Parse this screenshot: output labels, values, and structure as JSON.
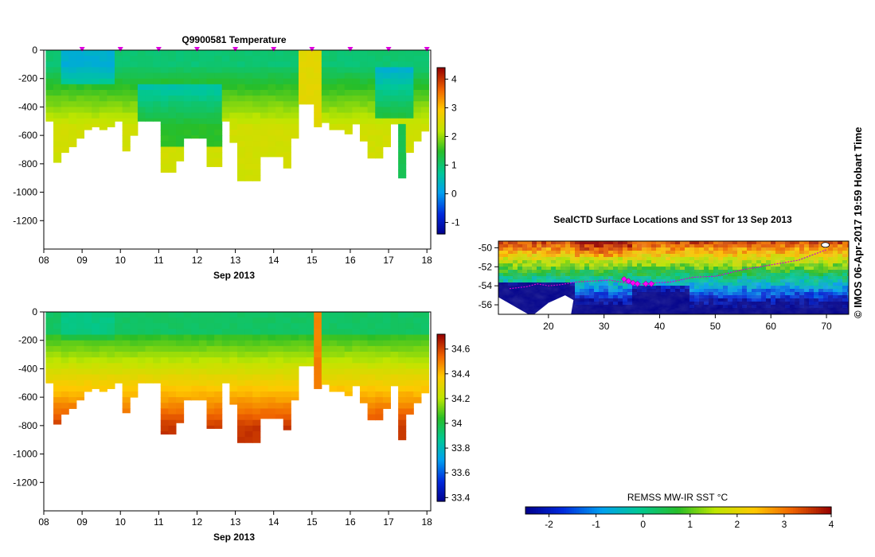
{
  "chart_data": [
    {
      "type": "heatmap",
      "title": "Q9900581  Temperature",
      "xlabel": "Sep 2013",
      "x_ticks": [
        "08",
        "09",
        "10",
        "11",
        "12",
        "13",
        "14",
        "15",
        "16",
        "17",
        "18"
      ],
      "x_range": [
        8,
        18.1
      ],
      "y_ticks": [
        0,
        -200,
        -400,
        -600,
        -800,
        -1000,
        -1200
      ],
      "ylim": [
        -1400,
        0
      ],
      "colorbar": {
        "range": [
          -1.4,
          4.4
        ],
        "ticks": [
          -1,
          0,
          1,
          2,
          3,
          4
        ]
      },
      "profile_markers_x": [
        9,
        10,
        11,
        12,
        13,
        14,
        15,
        16,
        17,
        18
      ],
      "profiles": [
        {
          "x": 8.15,
          "depth": 500
        },
        {
          "x": 8.35,
          "depth": 790
        },
        {
          "x": 8.55,
          "depth": 720
        },
        {
          "x": 8.75,
          "depth": 680
        },
        {
          "x": 8.95,
          "depth": 620
        },
        {
          "x": 9.15,
          "depth": 560
        },
        {
          "x": 9.35,
          "depth": 540
        },
        {
          "x": 9.55,
          "depth": 560
        },
        {
          "x": 9.75,
          "depth": 540
        },
        {
          "x": 9.95,
          "depth": 500
        },
        {
          "x": 10.15,
          "depth": 710
        },
        {
          "x": 10.35,
          "depth": 600
        },
        {
          "x": 10.55,
          "depth": 500
        },
        {
          "x": 10.75,
          "depth": 500
        },
        {
          "x": 10.95,
          "depth": 500
        },
        {
          "x": 11.15,
          "depth": 860
        },
        {
          "x": 11.35,
          "depth": 860
        },
        {
          "x": 11.55,
          "depth": 780
        },
        {
          "x": 11.75,
          "depth": 620
        },
        {
          "x": 11.95,
          "depth": 620
        },
        {
          "x": 12.15,
          "depth": 620
        },
        {
          "x": 12.35,
          "depth": 820
        },
        {
          "x": 12.55,
          "depth": 820
        },
        {
          "x": 12.75,
          "depth": 500
        },
        {
          "x": 12.95,
          "depth": 650
        },
        {
          "x": 13.15,
          "depth": 920
        },
        {
          "x": 13.35,
          "depth": 920
        },
        {
          "x": 13.55,
          "depth": 920
        },
        {
          "x": 13.75,
          "depth": 750
        },
        {
          "x": 13.95,
          "depth": 750
        },
        {
          "x": 14.15,
          "depth": 750
        },
        {
          "x": 14.35,
          "depth": 830
        },
        {
          "x": 14.55,
          "depth": 620
        },
        {
          "x": 14.75,
          "depth": 380
        },
        {
          "x": 14.95,
          "depth": 380
        },
        {
          "x": 15.15,
          "depth": 540
        },
        {
          "x": 15.35,
          "depth": 510
        },
        {
          "x": 15.55,
          "depth": 560
        },
        {
          "x": 15.75,
          "depth": 560
        },
        {
          "x": 15.95,
          "depth": 590
        },
        {
          "x": 16.15,
          "depth": 520
        },
        {
          "x": 16.35,
          "depth": 640
        },
        {
          "x": 16.55,
          "depth": 760
        },
        {
          "x": 16.75,
          "depth": 760
        },
        {
          "x": 16.95,
          "depth": 680
        },
        {
          "x": 17.15,
          "depth": 520
        },
        {
          "x": 17.35,
          "depth": 900
        },
        {
          "x": 17.55,
          "depth": 720
        },
        {
          "x": 17.75,
          "depth": 640
        },
        {
          "x": 17.95,
          "depth": 570
        }
      ]
    },
    {
      "type": "heatmap",
      "title": "",
      "xlabel": "Sep 2013",
      "x_ticks": [
        "08",
        "09",
        "10",
        "11",
        "12",
        "13",
        "14",
        "15",
        "16",
        "17",
        "18"
      ],
      "x_range": [
        8,
        18.1
      ],
      "y_ticks": [
        0,
        -200,
        -400,
        -600,
        -800,
        -1000,
        -1200
      ],
      "ylim": [
        -1400,
        0
      ],
      "colorbar": {
        "range": [
          33.37,
          34.72
        ],
        "ticks": [
          "33.4",
          "33.6",
          "33.8",
          "34",
          "34.2",
          "34.4",
          "34.6"
        ]
      }
    },
    {
      "type": "heatmap",
      "title": "SealCTD Surface Locations and SST for 13 Sep 2013",
      "x_ticks": [
        20,
        30,
        40,
        50,
        60,
        70
      ],
      "x_range": [
        11,
        74
      ],
      "y_ticks": [
        -50,
        -52,
        -54,
        -56
      ],
      "ylim": [
        -57,
        -49.3
      ],
      "colorbar": {
        "label": "REMSS MW-IR SST °C",
        "range": [
          -2.5,
          4
        ],
        "ticks": [
          -2,
          -1,
          0,
          1,
          2,
          3,
          4
        ]
      },
      "track": [
        [
          13,
          -54.3
        ],
        [
          16,
          -54.1
        ],
        [
          18,
          -53.8
        ],
        [
          20,
          -54.0
        ],
        [
          22,
          -53.9
        ],
        [
          25,
          -53.6
        ],
        [
          28,
          -53.5
        ],
        [
          31,
          -53.4
        ],
        [
          33,
          -53.6
        ],
        [
          35,
          -53.8
        ],
        [
          37,
          -53.8
        ],
        [
          39,
          -53.7
        ],
        [
          42,
          -53.6
        ],
        [
          46,
          -53.1
        ],
        [
          50,
          -53.0
        ],
        [
          55,
          -52.3
        ],
        [
          60,
          -51.8
        ],
        [
          65,
          -51.3
        ],
        [
          70,
          -50.2
        ]
      ],
      "highlight_points": [
        [
          33.6,
          -53.3
        ],
        [
          34.4,
          -53.5
        ],
        [
          35.2,
          -53.7
        ],
        [
          36.0,
          -53.8
        ],
        [
          37.5,
          -53.8
        ],
        [
          38.5,
          -53.8
        ]
      ]
    }
  ],
  "side_text": "© IMOS 06-Apr-2017 19:59 Hobart Time"
}
